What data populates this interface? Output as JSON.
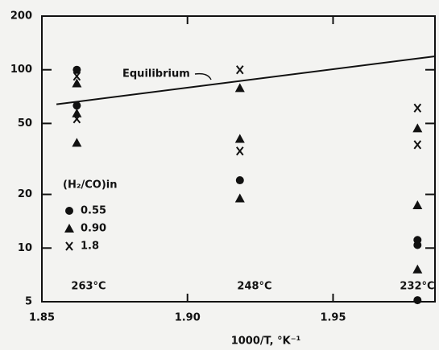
{
  "chart_data": {
    "type": "scatter",
    "x_label": "1000/T, °K⁻¹",
    "xlim": [
      1.85,
      1.985
    ],
    "xticks": [
      1.85,
      {
        "value": 1.9,
        "label": "1.90"
      },
      1.95
    ],
    "ylim": [
      5,
      200
    ],
    "yticks": [
      5,
      10,
      20,
      50,
      100,
      200
    ],
    "log_y": true,
    "legend_title": "(H₂/CO)in",
    "series": [
      {
        "name": "0.55",
        "marker": "circle",
        "color": "#111111",
        "x": [
          1.862,
          1.862,
          1.918,
          1.979,
          1.979,
          1.979
        ],
        "values": [
          100,
          63,
          24,
          11.1,
          10.4,
          5.1
        ]
      },
      {
        "name": "0.90",
        "marker": "triangle",
        "color": "#111111",
        "x": [
          1.862,
          1.862,
          1.862,
          1.918,
          1.918,
          1.918,
          1.979,
          1.979,
          1.979
        ],
        "values": [
          84,
          57,
          39,
          79,
          41,
          19,
          47,
          17.4,
          7.6
        ]
      },
      {
        "name": "1.8",
        "marker": "x",
        "color": "#111111",
        "x": [
          1.862,
          1.862,
          1.918,
          1.918,
          1.979,
          1.979
        ],
        "values": [
          92,
          53,
          100,
          35,
          61,
          38
        ]
      },
      {
        "name": "Equilibrium",
        "marker": "line",
        "color": "#111111",
        "x": [
          1.855,
          1.985
        ],
        "values": [
          64,
          119
        ]
      }
    ],
    "annotations": [
      "263°C",
      "248°C",
      "232°C"
    ]
  }
}
